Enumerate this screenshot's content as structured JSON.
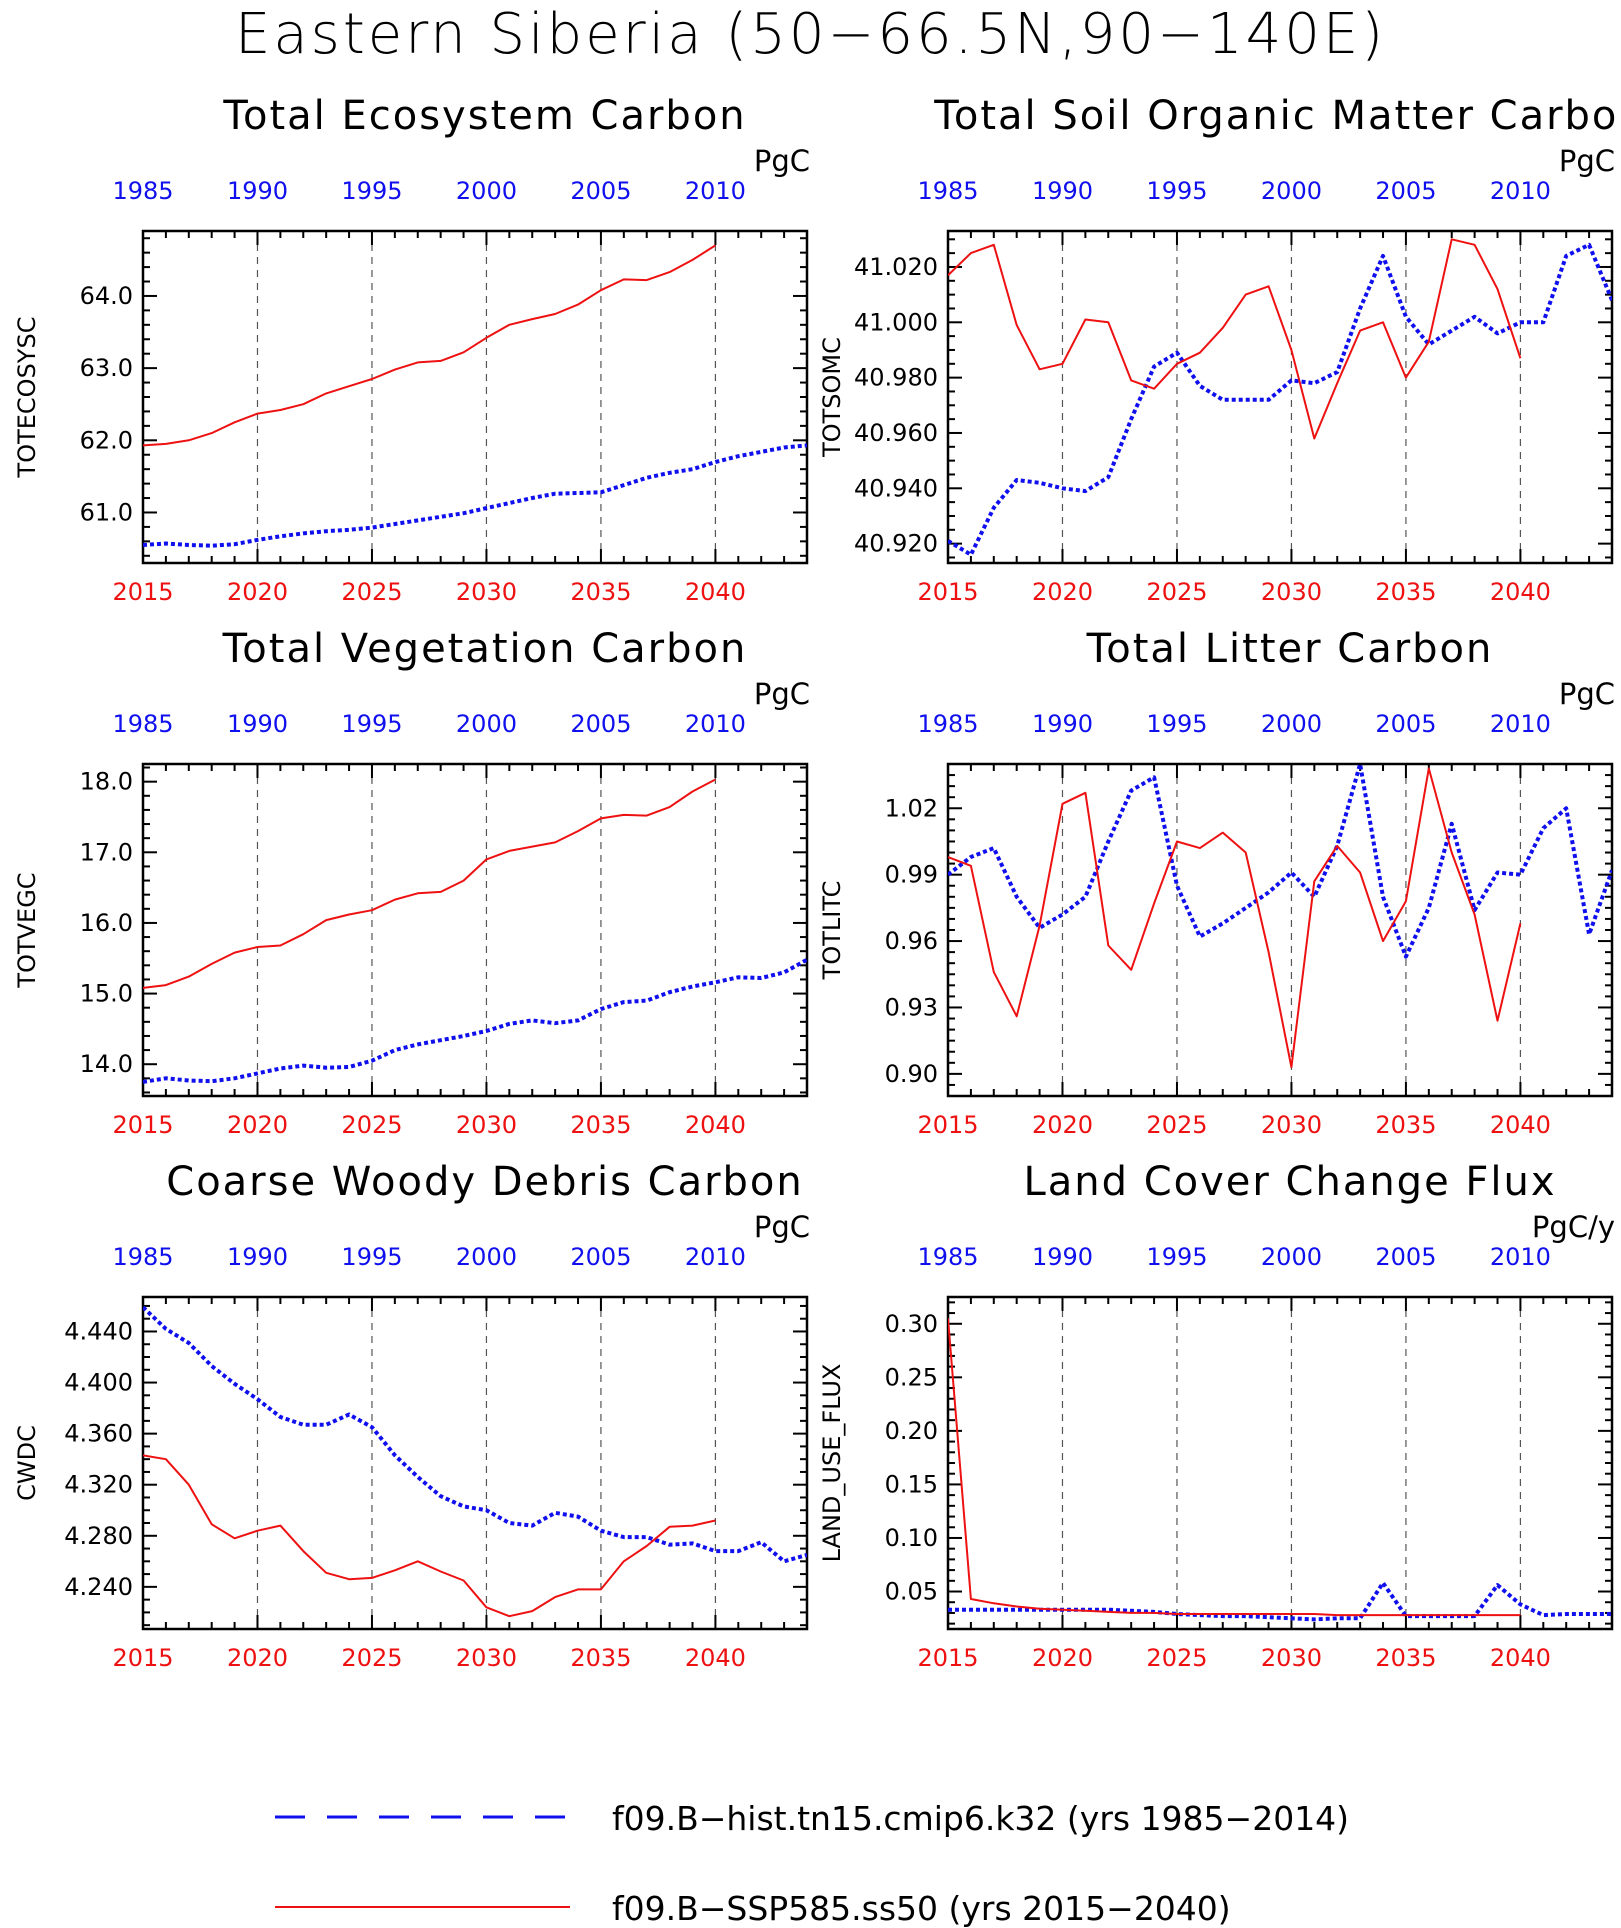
{
  "page": {
    "title": "Eastern Siberia (50−66.5N,90−140E)"
  },
  "colors": {
    "hist": "#1010ee",
    "ssp": "#ee1111",
    "axis": "#000000",
    "grid": "#555555"
  },
  "legend": {
    "hist_label": "f09.B−hist.tn15.cmip6.k32 (yrs 1985−2014)",
    "ssp_label": "f09.B−SSP585.ss50 (yrs 2015−2040)"
  },
  "chart_data": [
    {
      "type": "line",
      "title": "Total Ecosystem Carbon",
      "ylabel": "TOTECOSYSC",
      "units": "PgC",
      "x_bottom": {
        "range": [
          2015,
          2044
        ],
        "ticks": [
          2015,
          2020,
          2025,
          2030,
          2035,
          2040
        ]
      },
      "x_top": {
        "range": [
          1985,
          2014
        ],
        "ticks": [
          1985,
          1990,
          1995,
          2000,
          2005,
          2010
        ]
      },
      "ylim": [
        60.3,
        64.9
      ],
      "yticks": [
        61.0,
        62.0,
        63.0,
        64.0
      ],
      "yminor": 0.2,
      "ytick_decimals": 1,
      "series": [
        {
          "name": "f09.B−hist.tn15.cmip6.k32",
          "axis": "top",
          "style": "dotted",
          "start": 1985,
          "values": [
            60.55,
            60.57,
            60.55,
            60.54,
            60.56,
            60.62,
            60.67,
            60.71,
            60.74,
            60.76,
            60.79,
            60.84,
            60.89,
            60.94,
            60.99,
            61.06,
            61.13,
            61.2,
            61.26,
            61.27,
            61.28,
            61.38,
            61.48,
            61.55,
            61.6,
            61.7,
            61.78,
            61.84,
            61.9,
            61.93
          ]
        },
        {
          "name": "f09.B−SSP585.ss50",
          "axis": "bottom",
          "style": "solid",
          "start": 2015,
          "values": [
            61.93,
            61.95,
            62.0,
            62.1,
            62.25,
            62.37,
            62.42,
            62.5,
            62.65,
            62.75,
            62.85,
            62.98,
            63.08,
            63.1,
            63.22,
            63.42,
            63.6,
            63.68,
            63.75,
            63.88,
            64.08,
            64.23,
            64.22,
            64.33,
            64.5,
            64.7
          ]
        }
      ]
    },
    {
      "type": "line",
      "title": "Total Soil Organic Matter Carbon",
      "ylabel": "TOTSOMC",
      "units": "PgC",
      "x_bottom": {
        "range": [
          2015,
          2044
        ],
        "ticks": [
          2015,
          2020,
          2025,
          2030,
          2035,
          2040
        ]
      },
      "x_top": {
        "range": [
          1985,
          2014
        ],
        "ticks": [
          1985,
          1990,
          1995,
          2000,
          2005,
          2010
        ]
      },
      "ylim": [
        40.913,
        41.033
      ],
      "yticks": [
        40.92,
        40.94,
        40.96,
        40.98,
        41.0,
        41.02
      ],
      "yminor": 0.005,
      "ytick_decimals": 3,
      "series": [
        {
          "name": "f09.B−hist.tn15.cmip6.k32",
          "axis": "top",
          "style": "dotted",
          "start": 1985,
          "values": [
            40.921,
            40.916,
            40.933,
            40.943,
            40.942,
            40.94,
            40.939,
            40.944,
            40.965,
            40.984,
            40.989,
            40.977,
            40.972,
            40.972,
            40.972,
            40.979,
            40.978,
            40.982,
            41.005,
            41.024,
            41.002,
            40.992,
            40.997,
            41.002,
            40.996,
            41.0,
            41.0,
            41.024,
            41.028,
            41.008
          ]
        },
        {
          "name": "f09.B−SSP585.ss50",
          "axis": "bottom",
          "style": "solid",
          "start": 2015,
          "values": [
            41.017,
            41.025,
            41.028,
            40.999,
            40.983,
            40.985,
            41.001,
            41.0,
            40.979,
            40.976,
            40.985,
            40.989,
            40.998,
            41.01,
            41.013,
            40.99,
            40.958,
            40.978,
            40.997,
            41.0,
            40.98,
            40.993,
            41.03,
            41.028,
            41.012,
            40.987
          ]
        }
      ]
    },
    {
      "type": "line",
      "title": "Total Vegetation Carbon",
      "ylabel": "TOTVEGC",
      "units": "PgC",
      "x_bottom": {
        "range": [
          2015,
          2044
        ],
        "ticks": [
          2015,
          2020,
          2025,
          2030,
          2035,
          2040
        ]
      },
      "x_top": {
        "range": [
          1985,
          2014
        ],
        "ticks": [
          1985,
          1990,
          1995,
          2000,
          2005,
          2010
        ]
      },
      "ylim": [
        13.55,
        18.25
      ],
      "yticks": [
        14.0,
        15.0,
        16.0,
        17.0,
        18.0
      ],
      "yminor": 0.2,
      "ytick_decimals": 1,
      "series": [
        {
          "name": "f09.B−hist.tn15.cmip6.k32",
          "axis": "top",
          "style": "dotted",
          "start": 1985,
          "values": [
            13.75,
            13.8,
            13.77,
            13.76,
            13.8,
            13.87,
            13.94,
            13.98,
            13.95,
            13.96,
            14.05,
            14.2,
            14.28,
            14.34,
            14.4,
            14.47,
            14.57,
            14.62,
            14.58,
            14.62,
            14.78,
            14.88,
            14.9,
            15.02,
            15.1,
            15.16,
            15.23,
            15.22,
            15.3,
            15.48
          ]
        },
        {
          "name": "f09.B−SSP585.ss50",
          "axis": "bottom",
          "style": "solid",
          "start": 2015,
          "values": [
            15.08,
            15.12,
            15.24,
            15.42,
            15.58,
            15.66,
            15.68,
            15.84,
            16.04,
            16.12,
            16.18,
            16.33,
            16.42,
            16.44,
            16.6,
            16.9,
            17.02,
            17.08,
            17.14,
            17.3,
            17.48,
            17.53,
            17.52,
            17.64,
            17.86,
            18.03
          ]
        }
      ]
    },
    {
      "type": "line",
      "title": "Total Litter Carbon",
      "ylabel": "TOTLITC",
      "units": "PgC",
      "x_bottom": {
        "range": [
          2015,
          2044
        ],
        "ticks": [
          2015,
          2020,
          2025,
          2030,
          2035,
          2040
        ]
      },
      "x_top": {
        "range": [
          1985,
          2014
        ],
        "ticks": [
          1985,
          1990,
          1995,
          2000,
          2005,
          2010
        ]
      },
      "ylim": [
        0.89,
        1.04
      ],
      "yticks": [
        0.9,
        0.93,
        0.96,
        0.99,
        1.02
      ],
      "yminor": 0.005,
      "ytick_decimals": 2,
      "series": [
        {
          "name": "f09.B−hist.tn15.cmip6.k32",
          "axis": "top",
          "style": "dotted",
          "start": 1985,
          "values": [
            0.99,
            0.998,
            1.002,
            0.98,
            0.966,
            0.972,
            0.98,
            1.005,
            1.028,
            1.034,
            0.985,
            0.962,
            0.968,
            0.975,
            0.982,
            0.991,
            0.98,
            1.003,
            1.04,
            0.98,
            0.953,
            0.975,
            1.013,
            0.974,
            0.991,
            0.99,
            1.011,
            1.02,
            0.963,
            0.992
          ]
        },
        {
          "name": "f09.B−SSP585.ss50",
          "axis": "bottom",
          "style": "solid",
          "start": 2015,
          "values": [
            0.998,
            0.994,
            0.946,
            0.926,
            0.967,
            1.022,
            1.027,
            0.958,
            0.947,
            0.977,
            1.005,
            1.002,
            1.009,
            1.0,
            0.955,
            0.903,
            0.987,
            1.003,
            0.991,
            0.96,
            0.978,
            1.038,
            1.0,
            0.972,
            0.924,
            0.968
          ]
        }
      ]
    },
    {
      "type": "line",
      "title": "Coarse Woody Debris Carbon",
      "ylabel": "CWDC",
      "units": "PgC",
      "x_bottom": {
        "range": [
          2015,
          2044
        ],
        "ticks": [
          2015,
          2020,
          2025,
          2030,
          2035,
          2040
        ]
      },
      "x_top": {
        "range": [
          1985,
          2014
        ],
        "ticks": [
          1985,
          1990,
          1995,
          2000,
          2005,
          2010
        ]
      },
      "ylim": [
        4.207,
        4.467
      ],
      "yticks": [
        4.24,
        4.28,
        4.32,
        4.36,
        4.4,
        4.44
      ],
      "yminor": 0.01,
      "ytick_decimals": 3,
      "series": [
        {
          "name": "f09.B−hist.tn15.cmip6.k32",
          "axis": "top",
          "style": "dotted",
          "start": 1985,
          "values": [
            4.459,
            4.442,
            4.431,
            4.413,
            4.399,
            4.387,
            4.373,
            4.367,
            4.367,
            4.375,
            4.365,
            4.343,
            4.326,
            4.311,
            4.303,
            4.3,
            4.29,
            4.288,
            4.298,
            4.295,
            4.284,
            4.279,
            4.279,
            4.273,
            4.274,
            4.268,
            4.268,
            4.275,
            4.26,
            4.265
          ]
        },
        {
          "name": "f09.B−SSP585.ss50",
          "axis": "bottom",
          "style": "solid",
          "start": 2015,
          "values": [
            4.343,
            4.34,
            4.32,
            4.289,
            4.278,
            4.284,
            4.288,
            4.268,
            4.251,
            4.246,
            4.247,
            4.253,
            4.26,
            4.252,
            4.245,
            4.224,
            4.217,
            4.221,
            4.232,
            4.238,
            4.238,
            4.26,
            4.272,
            4.287,
            4.288,
            4.292
          ]
        }
      ]
    },
    {
      "type": "line",
      "title": "Land Cover Change Flux",
      "ylabel": "LAND_USE_FLUX",
      "units": "PgC/y",
      "x_bottom": {
        "range": [
          2015,
          2044
        ],
        "ticks": [
          2015,
          2020,
          2025,
          2030,
          2035,
          2040
        ]
      },
      "x_top": {
        "range": [
          1985,
          2014
        ],
        "ticks": [
          1985,
          1990,
          1995,
          2000,
          2005,
          2010
        ]
      },
      "ylim": [
        0.015,
        0.325
      ],
      "yticks": [
        0.05,
        0.1,
        0.15,
        0.2,
        0.25,
        0.3
      ],
      "yminor": 0.01,
      "ytick_decimals": 2,
      "series": [
        {
          "name": "f09.B−hist.tn15.cmip6.k32",
          "axis": "top",
          "style": "dotted",
          "start": 1985,
          "values": [
            0.033,
            0.033,
            0.033,
            0.033,
            0.033,
            0.033,
            0.033,
            0.033,
            0.032,
            0.031,
            0.029,
            0.028,
            0.027,
            0.027,
            0.026,
            0.025,
            0.024,
            0.025,
            0.025,
            0.058,
            0.027,
            0.027,
            0.027,
            0.027,
            0.056,
            0.038,
            0.028,
            0.029,
            0.029,
            0.029
          ]
        },
        {
          "name": "f09.B−SSP585.ss50",
          "axis": "bottom",
          "style": "solid",
          "start": 2015,
          "values": [
            0.305,
            0.043,
            0.039,
            0.036,
            0.034,
            0.033,
            0.032,
            0.031,
            0.03,
            0.03,
            0.029,
            0.029,
            0.029,
            0.029,
            0.029,
            0.029,
            0.029,
            0.028,
            0.028,
            0.028,
            0.028,
            0.028,
            0.028,
            0.028,
            0.028,
            0.028
          ]
        }
      ]
    }
  ]
}
